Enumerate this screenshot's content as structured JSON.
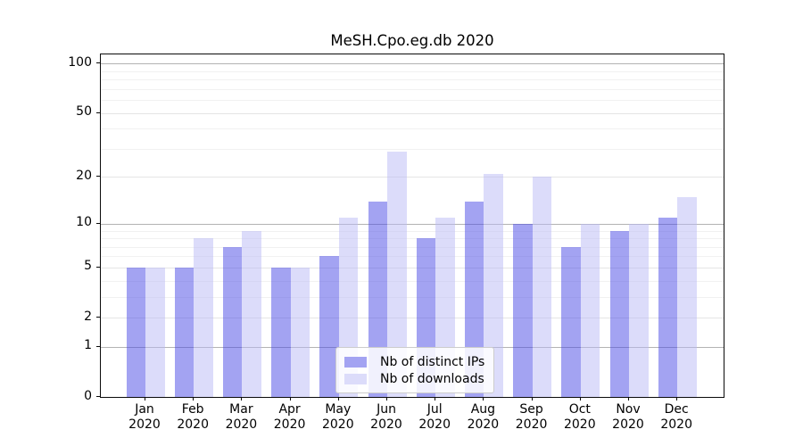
{
  "chart_data": {
    "type": "bar",
    "title": "MeSH.Cpo.eg.db 2020",
    "categories": [
      "Jan",
      "Feb",
      "Mar",
      "Apr",
      "May",
      "Jun",
      "Jul",
      "Aug",
      "Sep",
      "Oct",
      "Nov",
      "Dec"
    ],
    "x_year_label": "2020",
    "series": [
      {
        "name": "Nb of distinct IPs",
        "color_on_white": "#a3a3f2",
        "fill_rgba": "rgba(72,72,229,0.5)",
        "values": [
          5,
          5,
          7,
          5,
          6,
          14,
          8,
          14,
          10,
          7,
          9,
          11
        ]
      },
      {
        "name": "Nb of downloads",
        "color_on_white": "#dcdcfa",
        "fill_rgba": "rgba(185,185,245,0.5)",
        "values": [
          5,
          8,
          9,
          5,
          11,
          29,
          11,
          21,
          20,
          10,
          10,
          15
        ]
      }
    ],
    "yscale": "log1p",
    "ylim": [
      0,
      113.6
    ],
    "yticks": [
      0,
      1,
      2,
      5,
      10,
      20,
      50,
      100
    ],
    "gridlines": {
      "major": [
        1,
        10,
        100
      ],
      "medium": [
        2,
        5,
        20,
        50
      ],
      "minor": [
        3,
        4,
        6,
        7,
        8,
        9,
        30,
        40,
        60,
        70,
        80,
        90
      ]
    },
    "grid_colors": {
      "major": "#b3b3b3",
      "medium": "#e5e5e5",
      "minor": "#f1f1f1"
    },
    "legend": {
      "position": "lower-center"
    },
    "axis_color": "#0a0a0a",
    "text_color": "#000000"
  }
}
